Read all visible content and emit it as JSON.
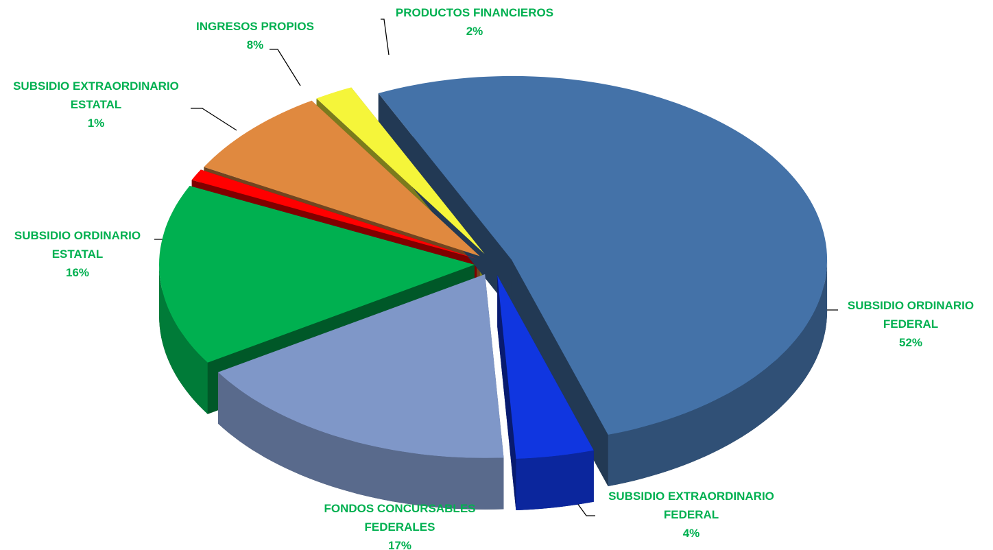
{
  "chart_data": {
    "type": "pie",
    "categories": [
      "SUBSIDIO ORDINARIO FEDERAL",
      "SUBSIDIO EXTRAORDINARIO FEDERAL",
      "FONDOS CONCURSABLES FEDERALES",
      "SUBSIDIO ORDINARIO ESTATAL",
      "SUBSIDIO EXTRAORDINARIO ESTATAL",
      "INGRESOS PROPIOS",
      "PRODUCTOS FINANCIEROS"
    ],
    "values": [
      52,
      4,
      17,
      16,
      1,
      8,
      2
    ],
    "value_labels": [
      "52%",
      "4%",
      "17%",
      "16%",
      "1%",
      "8%",
      "2%"
    ],
    "colors": [
      "#4472a8",
      "#1036e0",
      "#7f97c8",
      "#00b050",
      "#ff0000",
      "#e0893f",
      "#f5f53a"
    ]
  }
}
